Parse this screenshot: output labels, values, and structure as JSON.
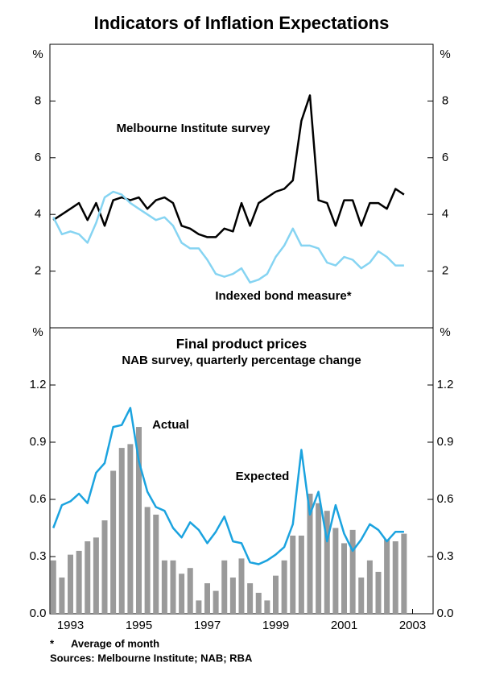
{
  "title": "Indicators of Inflation Expectations",
  "chart_data": [
    {
      "type": "line",
      "y_unit": "%",
      "x": [
        1992.5,
        1992.75,
        1993,
        1993.25,
        1993.5,
        1993.75,
        1994,
        1994.25,
        1994.5,
        1994.75,
        1995,
        1995.25,
        1995.5,
        1995.75,
        1996,
        1996.25,
        1996.5,
        1996.75,
        1997,
        1997.25,
        1997.5,
        1997.75,
        1998,
        1998.25,
        1998.5,
        1998.75,
        1999,
        1999.25,
        1999.5,
        1999.75,
        2000,
        2000.25,
        2000.5,
        2000.75,
        2001,
        2001.25,
        2001.5,
        2001.75,
        2002,
        2002.25,
        2002.5,
        2002.75
      ],
      "series": [
        {
          "name": "Melbourne Institute survey",
          "color": "#000000",
          "values": [
            3.8,
            4.0,
            4.2,
            4.4,
            3.8,
            4.4,
            3.6,
            4.5,
            4.6,
            4.5,
            4.6,
            4.2,
            4.5,
            4.6,
            4.4,
            3.6,
            3.5,
            3.3,
            3.2,
            3.2,
            3.5,
            3.4,
            4.4,
            3.6,
            4.4,
            4.6,
            4.8,
            4.9,
            5.2,
            7.3,
            8.2,
            4.5,
            4.4,
            3.6,
            4.5,
            4.5,
            3.6,
            4.4,
            4.4,
            4.2,
            4.9,
            4.7
          ]
        },
        {
          "name": "Indexed bond measure*",
          "color": "#86d4f2",
          "values": [
            3.9,
            3.3,
            3.4,
            3.3,
            3.0,
            3.7,
            4.6,
            4.8,
            4.7,
            4.4,
            4.2,
            4.0,
            3.8,
            3.9,
            3.6,
            3.0,
            2.8,
            2.8,
            2.4,
            1.9,
            1.8,
            1.9,
            2.1,
            1.6,
            1.7,
            1.9,
            2.5,
            2.9,
            3.5,
            2.9,
            2.9,
            2.8,
            2.3,
            2.2,
            2.5,
            2.4,
            2.1,
            2.3,
            2.7,
            2.5,
            2.2,
            2.2
          ]
        }
      ],
      "xlim": [
        1992.4,
        2003.6
      ],
      "ylim": [
        0,
        10
      ],
      "yticks": [
        2,
        4,
        6,
        8
      ]
    },
    {
      "type": "combo",
      "y_unit": "%",
      "title": "Final product prices",
      "subtitle": "NAB survey, quarterly percentage change",
      "x": [
        1992.5,
        1992.75,
        1993,
        1993.25,
        1993.5,
        1993.75,
        1994,
        1994.25,
        1994.5,
        1994.75,
        1995,
        1995.25,
        1995.5,
        1995.75,
        1996,
        1996.25,
        1996.5,
        1996.75,
        1997,
        1997.25,
        1997.5,
        1997.75,
        1998,
        1998.25,
        1998.5,
        1998.75,
        1999,
        1999.25,
        1999.5,
        1999.75,
        2000,
        2000.25,
        2000.5,
        2000.75,
        2001,
        2001.25,
        2001.5,
        2001.75,
        2002,
        2002.25,
        2002.5,
        2002.75
      ],
      "series": [
        {
          "name": "Actual",
          "type": "bar",
          "color": "#9a9a9a",
          "values": [
            0.28,
            0.19,
            0.31,
            0.33,
            0.38,
            0.4,
            0.49,
            0.75,
            0.87,
            0.89,
            0.98,
            0.56,
            0.52,
            0.28,
            0.28,
            0.21,
            0.24,
            0.07,
            0.16,
            0.12,
            0.28,
            0.19,
            0.29,
            0.16,
            0.11,
            0.07,
            0.2,
            0.28,
            0.41,
            0.41,
            0.63,
            0.58,
            0.54,
            0.45,
            0.37,
            0.44,
            0.19,
            0.28,
            0.22,
            0.39,
            0.38,
            0.42
          ]
        },
        {
          "name": "Expected",
          "type": "line",
          "color": "#1ba3df",
          "values": [
            0.45,
            0.57,
            0.59,
            0.63,
            0.58,
            0.74,
            0.79,
            0.98,
            0.99,
            1.08,
            0.8,
            0.64,
            0.56,
            0.54,
            0.45,
            0.4,
            0.48,
            0.44,
            0.37,
            0.43,
            0.51,
            0.38,
            0.37,
            0.27,
            0.26,
            0.28,
            0.31,
            0.35,
            0.47,
            0.86,
            0.52,
            0.64,
            0.38,
            0.57,
            0.42,
            0.33,
            0.39,
            0.47,
            0.44,
            0.38,
            0.43,
            0.43
          ]
        }
      ],
      "xlim": [
        1992.4,
        2003.6
      ],
      "xticks": [
        1993,
        1995,
        1997,
        1999,
        2001,
        2003
      ],
      "ylim": [
        0,
        1.5
      ],
      "yticks": [
        {
          "value": 0,
          "label": "0.0"
        },
        0.3,
        0.6,
        0.9,
        1.2
      ]
    }
  ],
  "footnote": {
    "marker": "*",
    "text": "Average of month"
  },
  "sources": "Sources: Melbourne Institute; NAB; RBA"
}
